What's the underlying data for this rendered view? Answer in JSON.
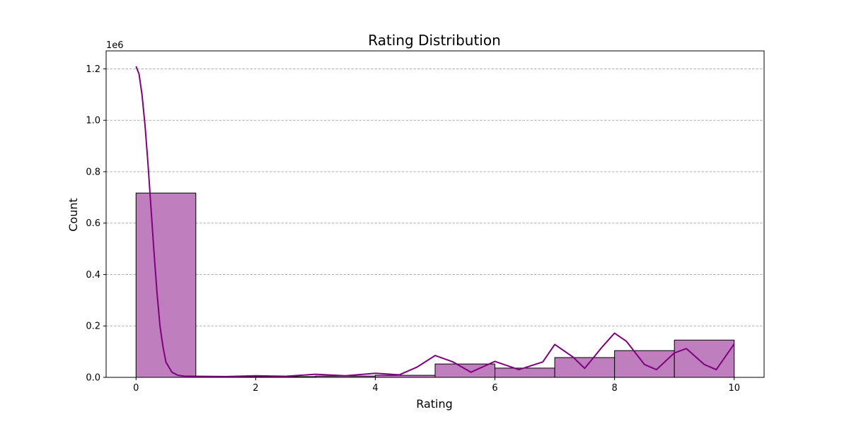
{
  "chart_data": {
    "type": "bar",
    "title": "Rating Distribution",
    "xlabel": "Rating",
    "ylabel": "Count",
    "y_offset_label": "1e6",
    "y_scale": 1000000,
    "xlim": [
      -0.5,
      10.5
    ],
    "ylim": [
      0,
      1.27
    ],
    "x_ticks": [
      0,
      2,
      4,
      6,
      8,
      10
    ],
    "y_ticks": [
      0.0,
      0.2,
      0.4,
      0.6,
      0.8,
      1.0,
      1.2
    ],
    "grid": "y-dashed",
    "bar_color": "#bf7fbf",
    "edge_color": "#000000",
    "kde_color": "#800080",
    "bins": [
      {
        "start": 0,
        "end": 1,
        "value": 0.717
      },
      {
        "start": 1,
        "end": 2,
        "value": 0.002
      },
      {
        "start": 2,
        "end": 3,
        "value": 0.003
      },
      {
        "start": 3,
        "end": 4,
        "value": 0.005
      },
      {
        "start": 4,
        "end": 5,
        "value": 0.008
      },
      {
        "start": 5,
        "end": 6,
        "value": 0.052
      },
      {
        "start": 6,
        "end": 7,
        "value": 0.036
      },
      {
        "start": 7,
        "end": 8,
        "value": 0.077
      },
      {
        "start": 8,
        "end": 9,
        "value": 0.104
      },
      {
        "start": 9,
        "end": 10,
        "value": 0.145
      }
    ],
    "kde": [
      [
        0,
        1.21
      ],
      [
        0.05,
        1.18
      ],
      [
        0.1,
        1.1
      ],
      [
        0.15,
        0.98
      ],
      [
        0.2,
        0.83
      ],
      [
        0.25,
        0.66
      ],
      [
        0.3,
        0.49
      ],
      [
        0.35,
        0.33
      ],
      [
        0.4,
        0.2
      ],
      [
        0.45,
        0.12
      ],
      [
        0.5,
        0.06
      ],
      [
        0.6,
        0.02
      ],
      [
        0.7,
        0.008
      ],
      [
        0.8,
        0.005
      ],
      [
        1.0,
        0.004
      ],
      [
        1.5,
        0.003
      ],
      [
        2.0,
        0.006
      ],
      [
        2.5,
        0.004
      ],
      [
        3.0,
        0.012
      ],
      [
        3.5,
        0.006
      ],
      [
        4.0,
        0.016
      ],
      [
        4.4,
        0.01
      ],
      [
        4.7,
        0.04
      ],
      [
        5.0,
        0.085
      ],
      [
        5.3,
        0.06
      ],
      [
        5.6,
        0.02
      ],
      [
        6.0,
        0.062
      ],
      [
        6.4,
        0.03
      ],
      [
        6.8,
        0.06
      ],
      [
        7.0,
        0.128
      ],
      [
        7.3,
        0.08
      ],
      [
        7.5,
        0.035
      ],
      [
        7.8,
        0.12
      ],
      [
        8.0,
        0.172
      ],
      [
        8.2,
        0.14
      ],
      [
        8.5,
        0.05
      ],
      [
        8.7,
        0.03
      ],
      [
        9.0,
        0.095
      ],
      [
        9.2,
        0.112
      ],
      [
        9.5,
        0.05
      ],
      [
        9.7,
        0.03
      ],
      [
        10.0,
        0.13
      ]
    ]
  }
}
